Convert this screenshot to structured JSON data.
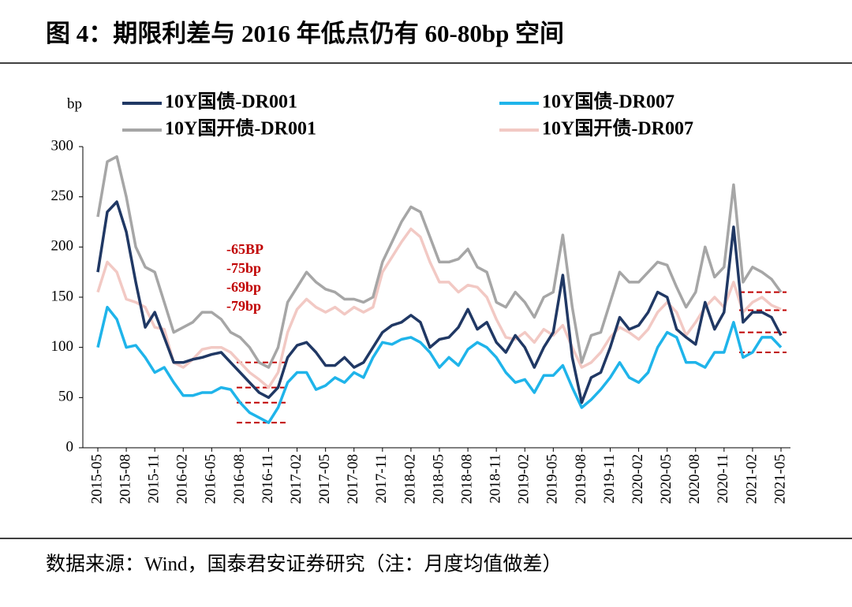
{
  "chart_data": {
    "type": "line",
    "title": "图 4：期限利差与 2016 年低点仍有 60-80bp 空间",
    "source": "数据来源：Wind，国泰君安证券研究（注：月度均值做差）",
    "y_label": "bp",
    "annotations": [
      "-65BP",
      "-75bp",
      "-69bp",
      "-79bp"
    ],
    "hlines": [
      85,
      60,
      45,
      25,
      155,
      137,
      115,
      95
    ],
    "categories": [
      "2015-05",
      null,
      null,
      "2015-08",
      null,
      null,
      "2015-11",
      null,
      null,
      "2016-02",
      null,
      null,
      "2016-05",
      null,
      null,
      "2016-08",
      null,
      null,
      "2016-11",
      null,
      null,
      "2017-02",
      null,
      null,
      "2017-05",
      null,
      null,
      "2017-08",
      null,
      null,
      "2017-11",
      null,
      null,
      "2018-02",
      null,
      null,
      "2018-05",
      null,
      null,
      "2018-08",
      null,
      null,
      "2018-11",
      null,
      null,
      "2019-02",
      null,
      null,
      "2019-05",
      null,
      null,
      "2019-08",
      null,
      null,
      "2019-11",
      null,
      null,
      "2020-02",
      null,
      null,
      "2020-05",
      null,
      null,
      "2020-08",
      null,
      null,
      "2020-11",
      null,
      null,
      "2021-02",
      null,
      null,
      "2021-05"
    ],
    "series": [
      {
        "name": "10Y国债-DR001",
        "color": "#203864",
        "values": [
          175,
          235,
          245,
          215,
          165,
          120,
          135,
          110,
          85,
          85,
          88,
          90,
          93,
          95,
          85,
          75,
          65,
          55,
          50,
          60,
          90,
          102,
          105,
          95,
          82,
          82,
          90,
          80,
          85,
          100,
          115,
          122,
          125,
          132,
          125,
          100,
          108,
          110,
          120,
          138,
          118,
          125,
          105,
          95,
          112,
          100,
          80,
          100,
          115,
          172,
          90,
          45,
          70,
          75,
          100,
          130,
          118,
          122,
          135,
          155,
          150,
          118,
          110,
          103,
          145,
          118,
          135,
          220,
          125,
          135,
          135,
          130,
          112
        ]
      },
      {
        "name": "10Y国债-DR007",
        "color": "#1fb4ea",
        "values": [
          100,
          140,
          128,
          100,
          102,
          90,
          75,
          80,
          65,
          52,
          52,
          55,
          55,
          60,
          58,
          45,
          35,
          30,
          25,
          40,
          65,
          75,
          75,
          58,
          62,
          70,
          65,
          75,
          70,
          90,
          105,
          103,
          108,
          110,
          105,
          95,
          80,
          90,
          82,
          98,
          105,
          100,
          90,
          75,
          65,
          68,
          55,
          72,
          72,
          82,
          60,
          40,
          48,
          58,
          70,
          85,
          70,
          65,
          75,
          100,
          115,
          110,
          85,
          85,
          80,
          95,
          95,
          125,
          90,
          95,
          110,
          110,
          100
        ]
      },
      {
        "name": "10Y国开债-DR001",
        "color": "#a6a6a6",
        "values": [
          230,
          285,
          290,
          250,
          200,
          180,
          175,
          145,
          115,
          120,
          125,
          135,
          135,
          128,
          115,
          110,
          100,
          85,
          80,
          100,
          145,
          160,
          175,
          165,
          158,
          155,
          148,
          148,
          145,
          150,
          185,
          205,
          225,
          240,
          235,
          210,
          185,
          185,
          188,
          198,
          180,
          175,
          145,
          140,
          155,
          145,
          130,
          150,
          155,
          212,
          140,
          85,
          112,
          115,
          145,
          175,
          165,
          165,
          175,
          185,
          182,
          160,
          140,
          155,
          200,
          170,
          180,
          262,
          165,
          180,
          175,
          168,
          155
        ]
      },
      {
        "name": "10Y国开债-DR007",
        "color": "#f2c9c4",
        "values": [
          155,
          185,
          175,
          148,
          145,
          140,
          120,
          118,
          85,
          80,
          88,
          98,
          100,
          100,
          95,
          85,
          75,
          68,
          60,
          75,
          115,
          138,
          148,
          140,
          135,
          140,
          133,
          140,
          135,
          140,
          175,
          190,
          205,
          218,
          210,
          185,
          165,
          165,
          155,
          162,
          160,
          150,
          128,
          110,
          108,
          115,
          105,
          118,
          112,
          122,
          100,
          80,
          85,
          95,
          110,
          120,
          115,
          108,
          118,
          135,
          145,
          135,
          112,
          125,
          140,
          150,
          140,
          165,
          135,
          145,
          150,
          142,
          138
        ]
      }
    ],
    "ylim": [
      0,
      300
    ],
    "yticks": [
      0,
      50,
      100,
      150,
      200,
      250,
      300
    ]
  }
}
